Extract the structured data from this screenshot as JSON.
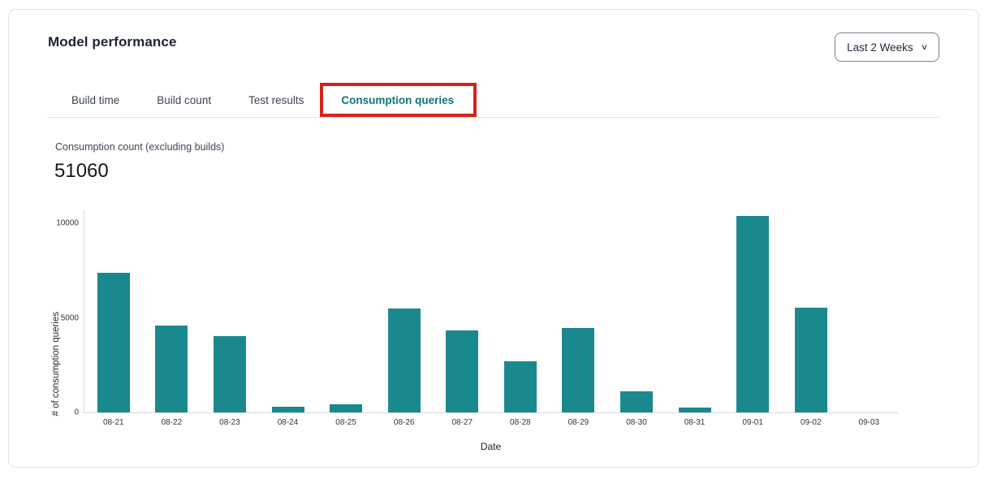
{
  "header": {
    "title": "Model performance",
    "range_selector": {
      "value": "Last 2 Weeks",
      "chevron_icon": "chevron-down-icon"
    }
  },
  "tabs": [
    {
      "label": "Build time",
      "active": false
    },
    {
      "label": "Build count",
      "active": false
    },
    {
      "label": "Test results",
      "active": false
    },
    {
      "label": "Consumption queries",
      "active": true,
      "annotated": true
    }
  ],
  "annotation": {
    "type": "highlight-box",
    "color": "#d6221a",
    "target": "Consumption queries tab"
  },
  "stat": {
    "label": "Consumption count (excluding builds)",
    "value": "51060"
  },
  "chart_data": {
    "type": "bar",
    "title": "",
    "xlabel": "Date",
    "ylabel": "# of consumption queries",
    "categories": [
      "08-21",
      "08-22",
      "08-23",
      "08-24",
      "08-25",
      "08-26",
      "08-27",
      "08-28",
      "08-29",
      "08-30",
      "08-31",
      "09-01",
      "09-02",
      "09-03"
    ],
    "values": [
      7400,
      4600,
      4050,
      300,
      430,
      5500,
      4330,
      2700,
      4450,
      1100,
      250,
      10400,
      5550,
      0
    ],
    "ylim": [
      0,
      10730
    ],
    "yticks": [
      0,
      5000,
      10000
    ],
    "grid": false,
    "legend": "none",
    "bar_color": "#1a898e"
  },
  "colors": {
    "accent_teal_text": "#0e767c",
    "bar_teal": "#1a898e",
    "annotation_red": "#d6221a",
    "card_border": "#e4e5e9",
    "divider": "#e2e3e7"
  }
}
